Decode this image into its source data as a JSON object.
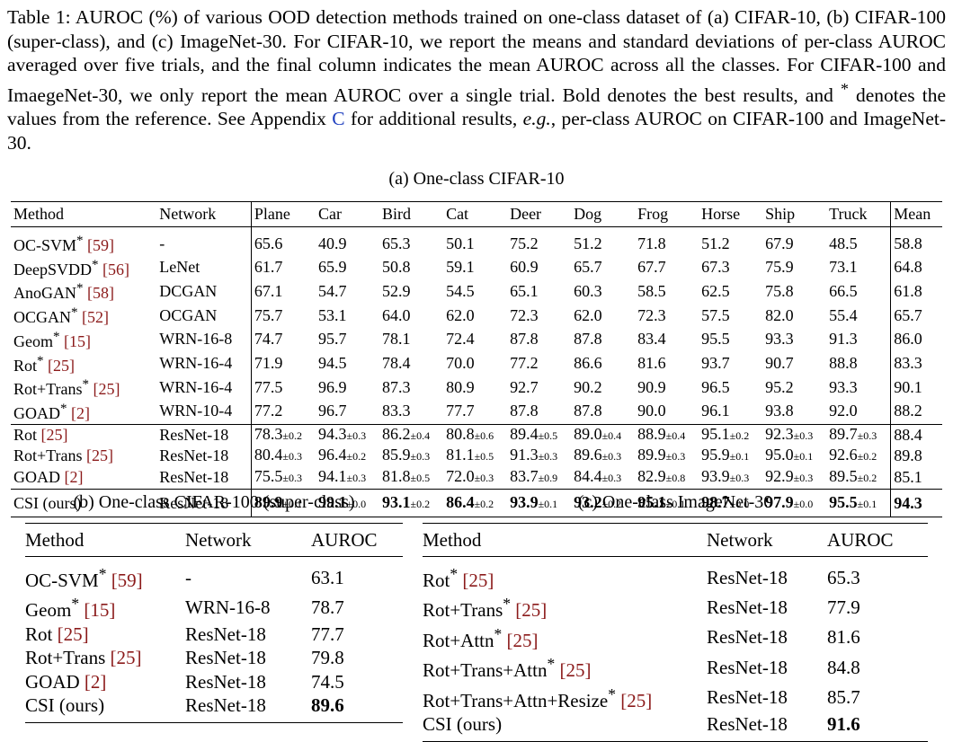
{
  "caption": {
    "p1": "Table 1: AUROC (%) of various OOD detection methods trained on one-class dataset of (a) CIFAR-10, (b) CIFAR-100 (super-class), and (c) ImageNet-30. For CIFAR-10, we report the means and standard deviations of per-class AUROC averaged over five trials, and the final column indicates the mean AUROC across all the classes. For CIFAR-100 and ImaegeNet-30, we only report the mean AUROC over a single trial. Bold denotes the best results, and ",
    "star": "*",
    "p2": " denotes the values from the reference. See Appendix ",
    "appendix_link": "C",
    "p3": " for additional results, ",
    "eg": "e.g.",
    "p4": ", per-class AUROC on CIFAR-100 and ImageNet-30."
  },
  "table_a": {
    "title": "(a) One-class CIFAR-10",
    "headers": [
      "Method",
      "Network",
      "Plane",
      "Car",
      "Bird",
      "Cat",
      "Deer",
      "Dog",
      "Frog",
      "Horse",
      "Ship",
      "Truck",
      "Mean"
    ],
    "ref_rows": [
      {
        "method": "OC-SVM*",
        "ref": "[59]",
        "network": "-",
        "values": [
          "65.6",
          "40.9",
          "65.3",
          "50.1",
          "75.2",
          "51.2",
          "71.8",
          "51.2",
          "67.9",
          "48.5"
        ],
        "mean": "58.8"
      },
      {
        "method": "DeepSVDD*",
        "ref": "[56]",
        "network": "LeNet",
        "values": [
          "61.7",
          "65.9",
          "50.8",
          "59.1",
          "60.9",
          "65.7",
          "67.7",
          "67.3",
          "75.9",
          "73.1"
        ],
        "mean": "64.8"
      },
      {
        "method": "AnoGAN*",
        "ref": "[58]",
        "network": "DCGAN",
        "values": [
          "67.1",
          "54.7",
          "52.9",
          "54.5",
          "65.1",
          "60.3",
          "58.5",
          "62.5",
          "75.8",
          "66.5"
        ],
        "mean": "61.8"
      },
      {
        "method": "OCGAN*",
        "ref": "[52]",
        "network": "OCGAN",
        "values": [
          "75.7",
          "53.1",
          "64.0",
          "62.0",
          "72.3",
          "62.0",
          "72.3",
          "57.5",
          "82.0",
          "55.4"
        ],
        "mean": "65.7"
      },
      {
        "method": "Geom*",
        "ref": "[15]",
        "network": "WRN-16-8",
        "values": [
          "74.7",
          "95.7",
          "78.1",
          "72.4",
          "87.8",
          "87.8",
          "83.4",
          "95.5",
          "93.3",
          "91.3"
        ],
        "mean": "86.0"
      },
      {
        "method": "Rot*",
        "ref": "[25]",
        "network": "WRN-16-4",
        "values": [
          "71.9",
          "94.5",
          "78.4",
          "70.0",
          "77.2",
          "86.6",
          "81.6",
          "93.7",
          "90.7",
          "88.8"
        ],
        "mean": "83.3"
      },
      {
        "method": "Rot+Trans*",
        "ref": "[25]",
        "network": "WRN-16-4",
        "values": [
          "77.5",
          "96.9",
          "87.3",
          "80.9",
          "92.7",
          "90.2",
          "90.9",
          "96.5",
          "95.2",
          "93.3"
        ],
        "mean": "90.1"
      },
      {
        "method": "GOAD*",
        "ref": "[2]",
        "network": "WRN-10-4",
        "values": [
          "77.2",
          "96.7",
          "83.3",
          "77.7",
          "87.8",
          "87.8",
          "90.0",
          "96.1",
          "93.8",
          "92.0"
        ],
        "mean": "88.2"
      }
    ],
    "trial_rows": [
      {
        "method": "Rot",
        "ref": "[25]",
        "network": "ResNet-18",
        "values": [
          [
            "78.3",
            "±0.2"
          ],
          [
            "94.3",
            "±0.3"
          ],
          [
            "86.2",
            "±0.4"
          ],
          [
            "80.8",
            "±0.6"
          ],
          [
            "89.4",
            "±0.5"
          ],
          [
            "89.0",
            "±0.4"
          ],
          [
            "88.9",
            "±0.4"
          ],
          [
            "95.1",
            "±0.2"
          ],
          [
            "92.3",
            "±0.3"
          ],
          [
            "89.7",
            "±0.3"
          ]
        ],
        "mean": "88.4"
      },
      {
        "method": "Rot+Trans",
        "ref": "[25]",
        "network": "ResNet-18",
        "values": [
          [
            "80.4",
            "±0.3"
          ],
          [
            "96.4",
            "±0.2"
          ],
          [
            "85.9",
            "±0.3"
          ],
          [
            "81.1",
            "±0.5"
          ],
          [
            "91.3",
            "±0.3"
          ],
          [
            "89.6",
            "±0.3"
          ],
          [
            "89.9",
            "±0.3"
          ],
          [
            "95.9",
            "±0.1"
          ],
          [
            "95.0",
            "±0.1"
          ],
          [
            "92.6",
            "±0.2"
          ]
        ],
        "mean": "89.8"
      },
      {
        "method": "GOAD",
        "ref": "[2]",
        "network": "ResNet-18",
        "values": [
          [
            "75.5",
            "±0.3"
          ],
          [
            "94.1",
            "±0.3"
          ],
          [
            "81.8",
            "±0.5"
          ],
          [
            "72.0",
            "±0.3"
          ],
          [
            "83.7",
            "±0.9"
          ],
          [
            "84.4",
            "±0.3"
          ],
          [
            "82.9",
            "±0.8"
          ],
          [
            "93.9",
            "±0.3"
          ],
          [
            "92.9",
            "±0.3"
          ],
          [
            "89.5",
            "±0.2"
          ]
        ],
        "mean": "85.1"
      }
    ],
    "csi_row": {
      "method": "CSI (ours)",
      "network": "ResNet-18",
      "values": [
        [
          "89.9",
          "±0.1"
        ],
        [
          "99.1",
          "±0.0"
        ],
        [
          "93.1",
          "±0.2"
        ],
        [
          "86.4",
          "±0.2"
        ],
        [
          "93.9",
          "±0.1"
        ],
        [
          "93.2",
          "±0.2"
        ],
        [
          "95.1",
          "±0.1"
        ],
        [
          "98.7",
          "±0.0"
        ],
        [
          "97.9",
          "±0.0"
        ],
        [
          "95.5",
          "±0.1"
        ]
      ],
      "mean": "94.3"
    }
  },
  "table_b": {
    "title": "(b) One-class CIFAR-100 (super-class)",
    "headers": [
      "Method",
      "Network",
      "AUROC"
    ],
    "rows": [
      {
        "method": "OC-SVM*",
        "ref": "[59]",
        "network": "-",
        "auroc": "63.1"
      },
      {
        "method": "Geom*",
        "ref": "[15]",
        "network": "WRN-16-8",
        "auroc": "78.7"
      },
      {
        "method": "Rot",
        "ref": "[25]",
        "network": "ResNet-18",
        "auroc": "77.7"
      },
      {
        "method": "Rot+Trans",
        "ref": "[25]",
        "network": "ResNet-18",
        "auroc": "79.8"
      },
      {
        "method": "GOAD",
        "ref": "[2]",
        "network": "ResNet-18",
        "auroc": "74.5"
      },
      {
        "method": "CSI (ours)",
        "ref": "",
        "network": "ResNet-18",
        "auroc": "89.6",
        "bold": true
      }
    ]
  },
  "table_c": {
    "title": "(c) One-class ImageNet-30",
    "headers": [
      "Method",
      "Network",
      "AUROC"
    ],
    "rows": [
      {
        "method": "Rot*",
        "ref": "[25]",
        "network": "ResNet-18",
        "auroc": "65.3"
      },
      {
        "method": "Rot+Trans*",
        "ref": "[25]",
        "network": "ResNet-18",
        "auroc": "77.9"
      },
      {
        "method": "Rot+Attn*",
        "ref": "[25]",
        "network": "ResNet-18",
        "auroc": "81.6"
      },
      {
        "method": "Rot+Trans+Attn*",
        "ref": "[25]",
        "network": "ResNet-18",
        "auroc": "84.8"
      },
      {
        "method": "Rot+Trans+Attn+Resize*",
        "ref": "[25]",
        "network": "ResNet-18",
        "auroc": "85.7"
      },
      {
        "method": "CSI (ours)",
        "ref": "",
        "network": "ResNet-18",
        "auroc": "91.6",
        "bold": true
      }
    ]
  }
}
